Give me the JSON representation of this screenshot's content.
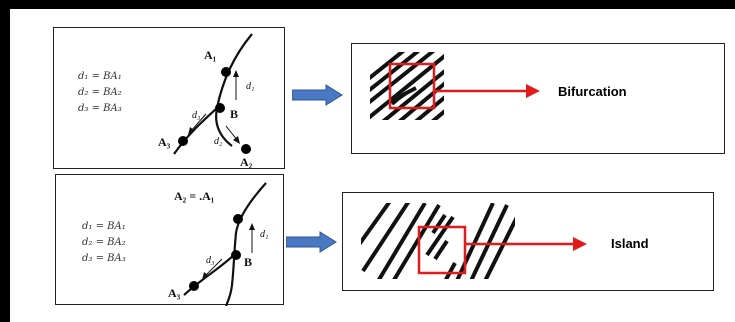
{
  "top": {
    "formulas": [
      "d₁ = BA₁",
      "d₂ = BA₂",
      "d₃ = BA₃"
    ],
    "labels": {
      "a1": "A₁",
      "b": "B",
      "a2": "A₂",
      "a3": "A₃",
      "d1": "d₁",
      "d2": "d₂",
      "d3": "d₃"
    },
    "result": "Bifurcation"
  },
  "bottom": {
    "formulas": [
      "d₁ = BA₁",
      "d₂ = BA₂",
      "d₃ = BA₃"
    ],
    "labels": {
      "a2a1": "A₂ = .A₁",
      "b": "B",
      "a3": "A₃",
      "d1": "d₁",
      "d3": "d₃"
    },
    "result": "Island"
  },
  "colors": {
    "accent_red": "#e11b1b",
    "arrow_blue": "#4a79c4"
  }
}
